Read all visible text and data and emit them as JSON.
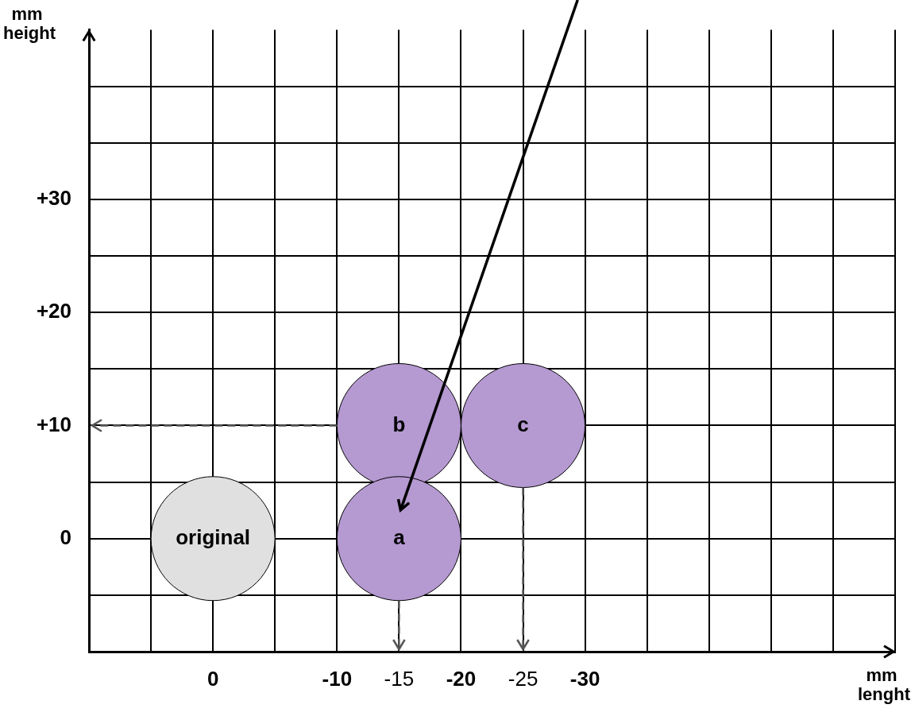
{
  "chart_data": {
    "type": "scatter",
    "xlabel": "mm lenght",
    "ylabel": "mm height",
    "series": [
      {
        "name": "original",
        "color": "#e0e0e0",
        "x": [
          0
        ],
        "values": [
          0
        ]
      },
      {
        "name": "a",
        "color": "#b599d1",
        "x": [
          -15
        ],
        "values": [
          0
        ]
      },
      {
        "name": "b",
        "color": "#b599d1",
        "x": [
          -15
        ],
        "values": [
          10
        ]
      },
      {
        "name": "c",
        "color": "#b599d1",
        "x": [
          -25
        ],
        "values": [
          10
        ]
      }
    ],
    "xlim": [
      10,
      -55
    ],
    "ylim": [
      -10,
      45
    ],
    "xticks": [
      {
        "value": 10,
        "label": null
      },
      {
        "value": 5,
        "label": null
      },
      0,
      {
        "value": -5,
        "label": null
      },
      -10,
      -15,
      -20,
      -25,
      -30,
      {
        "value": -35,
        "label": null
      },
      {
        "value": -40,
        "label": null
      },
      {
        "value": -45,
        "label": null
      },
      {
        "value": -50,
        "label": null
      },
      {
        "value": -55,
        "label": null
      }
    ],
    "yticks": [
      {
        "value": -10,
        "label": null
      },
      {
        "value": -5,
        "label": null
      },
      {
        "value": 0,
        "label": "0"
      },
      {
        "value": 5,
        "label": null
      },
      {
        "value": 10,
        "label": "+10"
      },
      {
        "value": 15,
        "label": null
      },
      {
        "value": 20,
        "label": "+20"
      },
      {
        "value": 25,
        "label": null
      },
      {
        "value": 30,
        "label": "+30"
      },
      {
        "value": 35,
        "label": null
      },
      {
        "value": 40,
        "label": null
      }
    ],
    "grid": true,
    "marker": "circle"
  }
}
